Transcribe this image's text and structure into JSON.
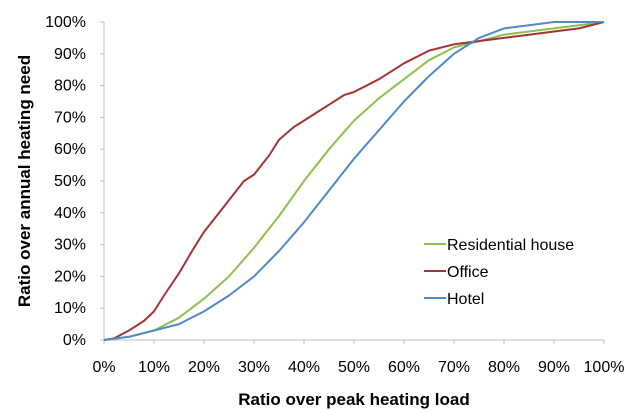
{
  "chart_data": {
    "type": "line",
    "title": "",
    "xlabel": "Ratio over peak heating load",
    "ylabel": "Ratio over annual heating  need",
    "xlim": [
      0,
      100
    ],
    "ylim": [
      0,
      100
    ],
    "x_ticks": [
      "0%",
      "10%",
      "20%",
      "30%",
      "40%",
      "50%",
      "60%",
      "70%",
      "80%",
      "90%",
      "100%"
    ],
    "y_ticks": [
      "0%",
      "10%",
      "20%",
      "30%",
      "40%",
      "50%",
      "60%",
      "70%",
      "80%",
      "90%",
      "100%"
    ],
    "grid": false,
    "legend_position": "right",
    "series": [
      {
        "name": "Residential house",
        "color": "#8dc14f",
        "x": [
          0,
          5,
          10,
          15,
          20,
          25,
          30,
          35,
          40,
          45,
          50,
          55,
          60,
          65,
          70,
          75,
          80,
          85,
          90,
          95,
          100
        ],
        "y": [
          0,
          1,
          3,
          7,
          13,
          20,
          29,
          39,
          50,
          60,
          69,
          76,
          82,
          88,
          92,
          94,
          96,
          97,
          98,
          99,
          100
        ]
      },
      {
        "name": "Office",
        "color": "#a23535",
        "x": [
          0,
          2,
          5,
          8,
          10,
          12,
          15,
          18,
          20,
          22,
          25,
          28,
          30,
          33,
          35,
          38,
          40,
          43,
          45,
          48,
          50,
          55,
          60,
          65,
          70,
          75,
          80,
          85,
          90,
          95,
          100
        ],
        "y": [
          0,
          0.5,
          3,
          6,
          9,
          14,
          21,
          29,
          34,
          38,
          44,
          50,
          52,
          58,
          63,
          67,
          69,
          72,
          74,
          77,
          78,
          82,
          87,
          91,
          93,
          94,
          95,
          96,
          97,
          98,
          100
        ]
      },
      {
        "name": "Hotel",
        "color": "#4f8ac9",
        "x": [
          0,
          5,
          10,
          15,
          20,
          25,
          30,
          35,
          40,
          45,
          50,
          55,
          60,
          65,
          70,
          75,
          80,
          85,
          90,
          95,
          100
        ],
        "y": [
          0,
          1,
          3,
          5,
          9,
          14,
          20,
          28,
          37,
          47,
          57,
          66,
          75,
          83,
          90,
          95,
          98,
          99,
          100,
          100,
          100
        ]
      }
    ]
  }
}
